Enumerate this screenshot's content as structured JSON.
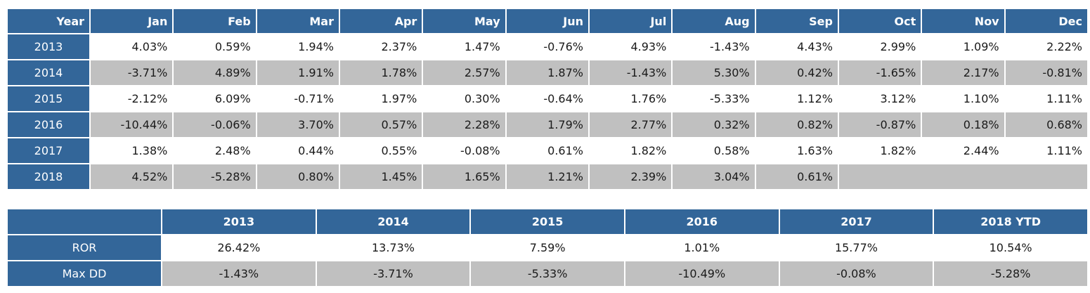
{
  "monthly": {
    "headers": [
      "Year",
      "Jan",
      "Feb",
      "Mar",
      "Apr",
      "May",
      "Jun",
      "Jul",
      "Aug",
      "Sep",
      "Oct",
      "Nov",
      "Dec"
    ],
    "rows": [
      {
        "year": "2013",
        "values": [
          "4.03%",
          "0.59%",
          "1.94%",
          "2.37%",
          "1.47%",
          "-0.76%",
          "4.93%",
          "-1.43%",
          "4.43%",
          "2.99%",
          "1.09%",
          "2.22%"
        ]
      },
      {
        "year": "2014",
        "values": [
          "-3.71%",
          "4.89%",
          "1.91%",
          "1.78%",
          "2.57%",
          "1.87%",
          "-1.43%",
          "5.30%",
          "0.42%",
          "-1.65%",
          "2.17%",
          "-0.81%"
        ]
      },
      {
        "year": "2015",
        "values": [
          "-2.12%",
          "6.09%",
          "-0.71%",
          "1.97%",
          "0.30%",
          "-0.64%",
          "1.76%",
          "-5.33%",
          "1.12%",
          "3.12%",
          "1.10%",
          "1.11%"
        ]
      },
      {
        "year": "2016",
        "values": [
          "-10.44%",
          "-0.06%",
          "3.70%",
          "0.57%",
          "2.28%",
          "1.79%",
          "2.77%",
          "0.32%",
          "0.82%",
          "-0.87%",
          "0.18%",
          "0.68%"
        ]
      },
      {
        "year": "2017",
        "values": [
          "1.38%",
          "2.48%",
          "0.44%",
          "0.55%",
          "-0.08%",
          "0.61%",
          "1.82%",
          "0.58%",
          "1.63%",
          "1.82%",
          "2.44%",
          "1.11%"
        ]
      },
      {
        "year": "2018",
        "values": [
          "4.52%",
          "-5.28%",
          "0.80%",
          "1.45%",
          "1.65%",
          "1.21%",
          "2.39%",
          "3.04%",
          "0.61%"
        ]
      }
    ]
  },
  "annual": {
    "headers": [
      "",
      "2013",
      "2014",
      "2015",
      "2016",
      "2017",
      "2018 YTD"
    ],
    "rows": [
      {
        "label": "ROR",
        "values": [
          "26.42%",
          "13.73%",
          "7.59%",
          "1.01%",
          "15.77%",
          "10.54%"
        ]
      },
      {
        "label": "Max DD",
        "values": [
          "-1.43%",
          "-3.71%",
          "-5.33%",
          "-10.49%",
          "-0.08%",
          "-5.28%"
        ]
      }
    ]
  },
  "colors": {
    "header_bg": "#336699",
    "header_text": "#ffffff",
    "alt_row_bg": "#c0c0c0",
    "row_bg": "#ffffff"
  }
}
